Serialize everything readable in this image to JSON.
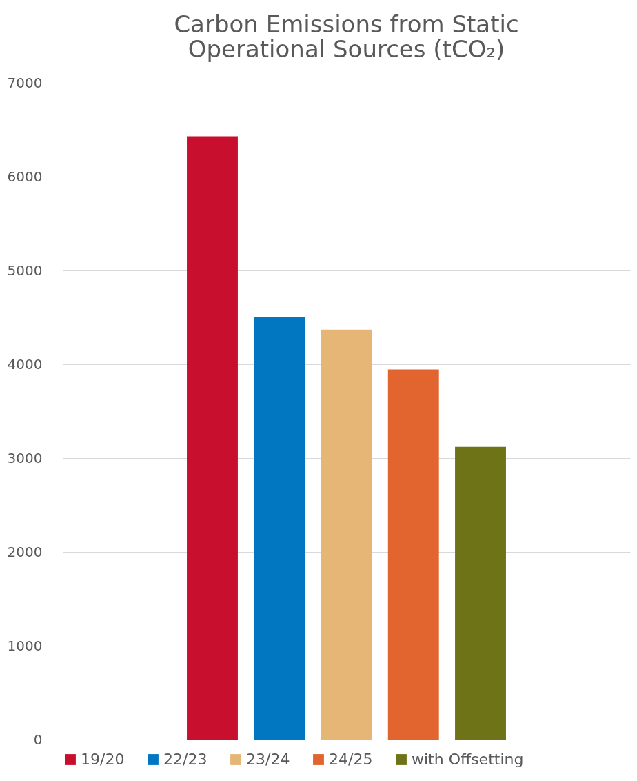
{
  "chart_data": {
    "type": "bar",
    "title": [
      "Carbon Emissions from Static",
      "Operational Sources (tCO₂)"
    ],
    "categories": [
      null
    ],
    "series": [
      {
        "name": "19/20",
        "color": "#c8102e",
        "values": [
          6430
        ]
      },
      {
        "name": "22/23",
        "color": "#0077c0",
        "values": [
          4500
        ]
      },
      {
        "name": "23/24",
        "color": "#e6b677",
        "values": [
          4370
        ]
      },
      {
        "name": "24/25",
        "color": "#e2642e",
        "values": [
          3945
        ]
      },
      {
        "name": "with Offsetting",
        "color": "#6f7317",
        "values": [
          3120
        ]
      }
    ],
    "ylim": [
      0,
      7000
    ],
    "yticks": [
      0,
      1000,
      2000,
      3000,
      4000,
      5000,
      6000,
      7000
    ],
    "grid": "y",
    "legend": "bottom",
    "tick_labels": "y"
  }
}
